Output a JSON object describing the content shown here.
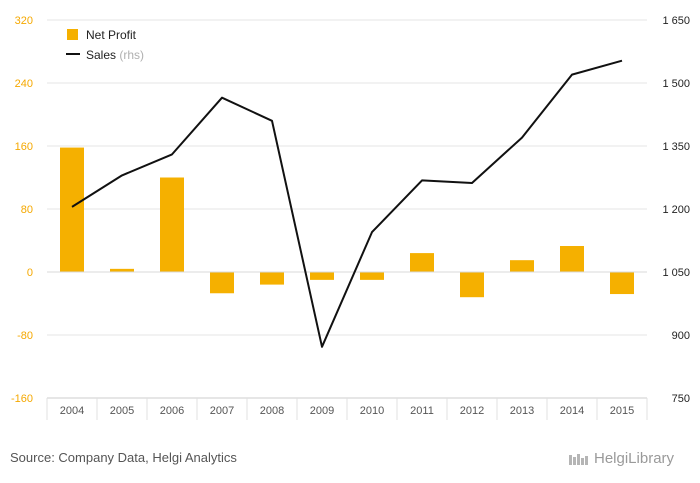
{
  "chart_data": {
    "type": "bar+line",
    "categories": [
      "2004",
      "2005",
      "2006",
      "2007",
      "2008",
      "2009",
      "2010",
      "2011",
      "2012",
      "2013",
      "2014",
      "2015"
    ],
    "series": [
      {
        "name": "Net Profit",
        "type": "bar",
        "axis": "left",
        "color": "#f5b000",
        "values": [
          158,
          4,
          120,
          -27,
          -16,
          -10,
          -10,
          24,
          -32,
          15,
          33,
          -28
        ]
      },
      {
        "name": "Sales",
        "name_suffix": "(rhs)",
        "type": "line",
        "axis": "right",
        "color": "#111111",
        "values": [
          1205,
          1280,
          1330,
          1465,
          1410,
          872,
          1145,
          1268,
          1262,
          1370,
          1520,
          1553
        ]
      }
    ],
    "left_axis": {
      "min": -160,
      "max": 320,
      "ticks": [
        "320",
        "240",
        "160",
        "80",
        "0",
        "-80",
        "-160"
      ],
      "tick_values": [
        320,
        240,
        160,
        80,
        0,
        -80,
        -160
      ],
      "color": "#f5a800"
    },
    "right_axis": {
      "min": 750,
      "max": 1650,
      "ticks": [
        "1 650",
        "1 500",
        "1 350",
        "1 200",
        "1 050",
        "900",
        "750"
      ],
      "tick_values": [
        1650,
        1500,
        1350,
        1200,
        1050,
        900,
        750
      ]
    },
    "grid": true,
    "legend_position": "top-left"
  },
  "footer": {
    "source": "Source: Company Data, Helgi Analytics",
    "brand": "HelgiLibrary"
  }
}
